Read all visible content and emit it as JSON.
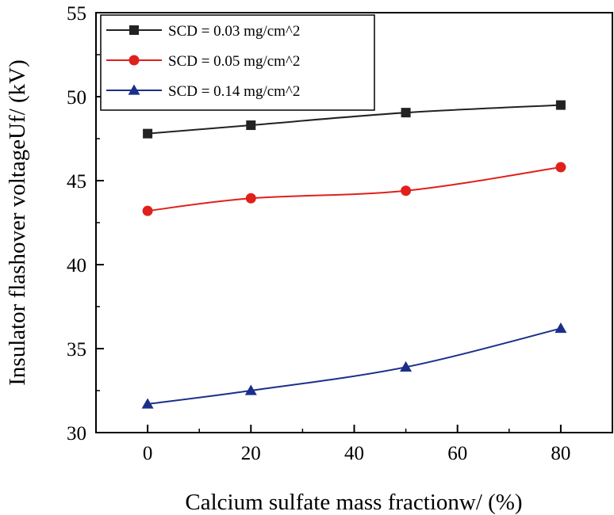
{
  "chart_data": {
    "type": "line",
    "x": [
      0,
      20,
      50,
      80
    ],
    "series": [
      {
        "name": "SCD = 0.03 mg/cm^2",
        "values": [
          47.8,
          48.3,
          49.05,
          49.5
        ],
        "color": "#222222",
        "marker": "square"
      },
      {
        "name": "SCD = 0.05 mg/cm^2",
        "values": [
          43.2,
          43.95,
          44.4,
          45.8
        ],
        "color": "#e0201b",
        "marker": "circle"
      },
      {
        "name": "SCD = 0.14 mg/cm^2",
        "values": [
          31.7,
          32.5,
          33.9,
          36.2
        ],
        "color": "#1b2f8a",
        "marker": "triangle"
      }
    ],
    "xlabel": "Calcium sulfate mass fractionw/ (%)",
    "ylabel": "Insulator flashover voltageUf/ (kV)",
    "xlim": [
      -10,
      90
    ],
    "ylim": [
      30,
      55
    ],
    "xticks": [
      "0",
      "20",
      "40",
      "60",
      "80"
    ],
    "yticks": [
      "30",
      "35",
      "40",
      "45",
      "50",
      "55"
    ],
    "legend_position": "top-left",
    "grid": false
  }
}
